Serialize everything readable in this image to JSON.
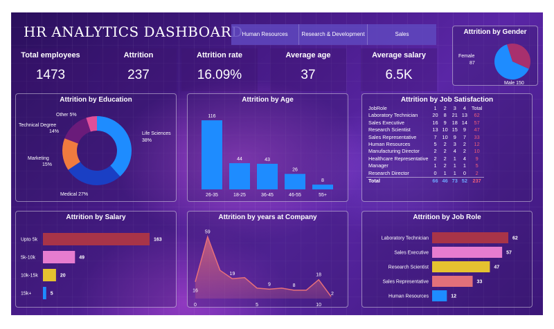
{
  "title": "HR ANALYTICS DASHBOARD",
  "departments": [
    "Human Resources",
    "Research & Development",
    "Sales"
  ],
  "kpis": [
    {
      "label": "Total employees",
      "value": "1473"
    },
    {
      "label": "Attrition",
      "value": "237"
    },
    {
      "label": "Attrition rate",
      "value": "16.09%"
    },
    {
      "label": "Average age",
      "value": "37"
    },
    {
      "label": "Average salary",
      "value": "6.5K"
    }
  ],
  "gender": {
    "title": "Attrition by Gender",
    "female_label": "Female",
    "female_value": "87",
    "male_label": "Male 150"
  },
  "education": {
    "title": "Attrition by Education",
    "labels": {
      "other": "Other 5%",
      "technical_degree": "Technical Degree",
      "technical_pct": "14%",
      "marketing": "Marketing",
      "marketing_pct": "15%",
      "life_sciences": "Life Sciences",
      "life_pct": "38%",
      "medical": "Medical 27%"
    }
  },
  "age": {
    "title": "Attrition by Age",
    "value_labels": [
      "116",
      "44",
      "43",
      "26",
      "8"
    ],
    "categories": [
      "26-35",
      "18-25",
      "36-45",
      "46-55",
      "55+"
    ]
  },
  "job_satisfaction": {
    "title": "Attrition by Job Satisfaction",
    "header": [
      "JobRole",
      "1",
      "2",
      "3",
      "4",
      "Total"
    ],
    "rows": [
      [
        "Laboratory Technician",
        "20",
        "8",
        "21",
        "13",
        "62"
      ],
      [
        "Sales Executive",
        "16",
        "9",
        "18",
        "14",
        "57"
      ],
      [
        "Research Scientist",
        "13",
        "10",
        "15",
        "9",
        "47"
      ],
      [
        "Sales Representative",
        "7",
        "10",
        "9",
        "7",
        "33"
      ],
      [
        "Human Resources",
        "5",
        "2",
        "3",
        "2",
        "12"
      ],
      [
        "Manufacturing Director",
        "2",
        "2",
        "4",
        "2",
        "10"
      ],
      [
        "Healthcare Representative",
        "2",
        "2",
        "1",
        "4",
        "9"
      ],
      [
        "Manager",
        "1",
        "2",
        "1",
        "1",
        "5"
      ],
      [
        "Research Director",
        "0",
        "1",
        "1",
        "0",
        "2"
      ]
    ],
    "total": [
      "Total",
      "66",
      "46",
      "73",
      "52",
      "237"
    ]
  },
  "salary": {
    "title": "Attrition by Salary",
    "categories": [
      "Upto 5k",
      "5k-10k",
      "10k-15k",
      "15k+"
    ],
    "value_labels": [
      "163",
      "49",
      "20",
      "5"
    ]
  },
  "years": {
    "title": "Attrition by years at Company",
    "point_labels": [
      "16",
      "59",
      "19",
      "9",
      "8",
      "18",
      "2"
    ],
    "axis_ticks": [
      "0",
      "5",
      "10"
    ]
  },
  "job_role": {
    "title": "Attrition by Job Role",
    "categories": [
      "Laboratory Technician",
      "Sales Executive",
      "Research Scientist",
      "Sales Representative",
      "Human Resources"
    ],
    "value_labels": [
      "62",
      "57",
      "47",
      "33",
      "12"
    ]
  },
  "chart_data": [
    {
      "type": "pie",
      "title": "Attrition by Gender",
      "categories": [
        "Female",
        "Male"
      ],
      "values": [
        87,
        150
      ],
      "colors": [
        "#a8306e",
        "#1e8cff"
      ]
    },
    {
      "type": "pie",
      "title": "Attrition by Education",
      "categories": [
        "Life Sciences",
        "Medical",
        "Marketing",
        "Technical Degree",
        "Other"
      ],
      "values": [
        38,
        27,
        15,
        14,
        5
      ],
      "colors": [
        "#1e8cff",
        "#1a3fc4",
        "#f07b3f",
        "#6a1b7a",
        "#e04f9a"
      ]
    },
    {
      "type": "bar",
      "title": "Attrition by Age",
      "categories": [
        "26-35",
        "18-25",
        "36-45",
        "46-55",
        "55+"
      ],
      "values": [
        116,
        44,
        43,
        26,
        8
      ],
      "ylim": [
        0,
        130
      ]
    },
    {
      "type": "table",
      "title": "Attrition by Job Satisfaction"
    },
    {
      "type": "bar",
      "orientation": "horizontal",
      "title": "Attrition by Salary",
      "categories": [
        "Upto 5k",
        "5k-10k",
        "10k-15k",
        "15k+"
      ],
      "values": [
        163,
        49,
        20,
        5
      ],
      "colors": [
        "#a83448",
        "#e67ccf",
        "#e5c230",
        "#1e8cff"
      ]
    },
    {
      "type": "area",
      "title": "Attrition by years at Company",
      "x": [
        0,
        1,
        2,
        3,
        4,
        5,
        6,
        7,
        8,
        9,
        10,
        11
      ],
      "y": [
        16,
        59,
        27,
        19,
        20,
        10,
        9,
        10,
        8,
        8,
        18,
        2
      ],
      "xlim": [
        0,
        11
      ]
    },
    {
      "type": "bar",
      "orientation": "horizontal",
      "title": "Attrition by Job Role",
      "categories": [
        "Laboratory Technician",
        "Sales Executive",
        "Research Scientist",
        "Sales Representative",
        "Human Resources"
      ],
      "values": [
        62,
        57,
        47,
        33,
        12
      ],
      "colors": [
        "#a83448",
        "#e67ccf",
        "#e5c230",
        "#e2707a",
        "#1e8cff"
      ]
    }
  ]
}
